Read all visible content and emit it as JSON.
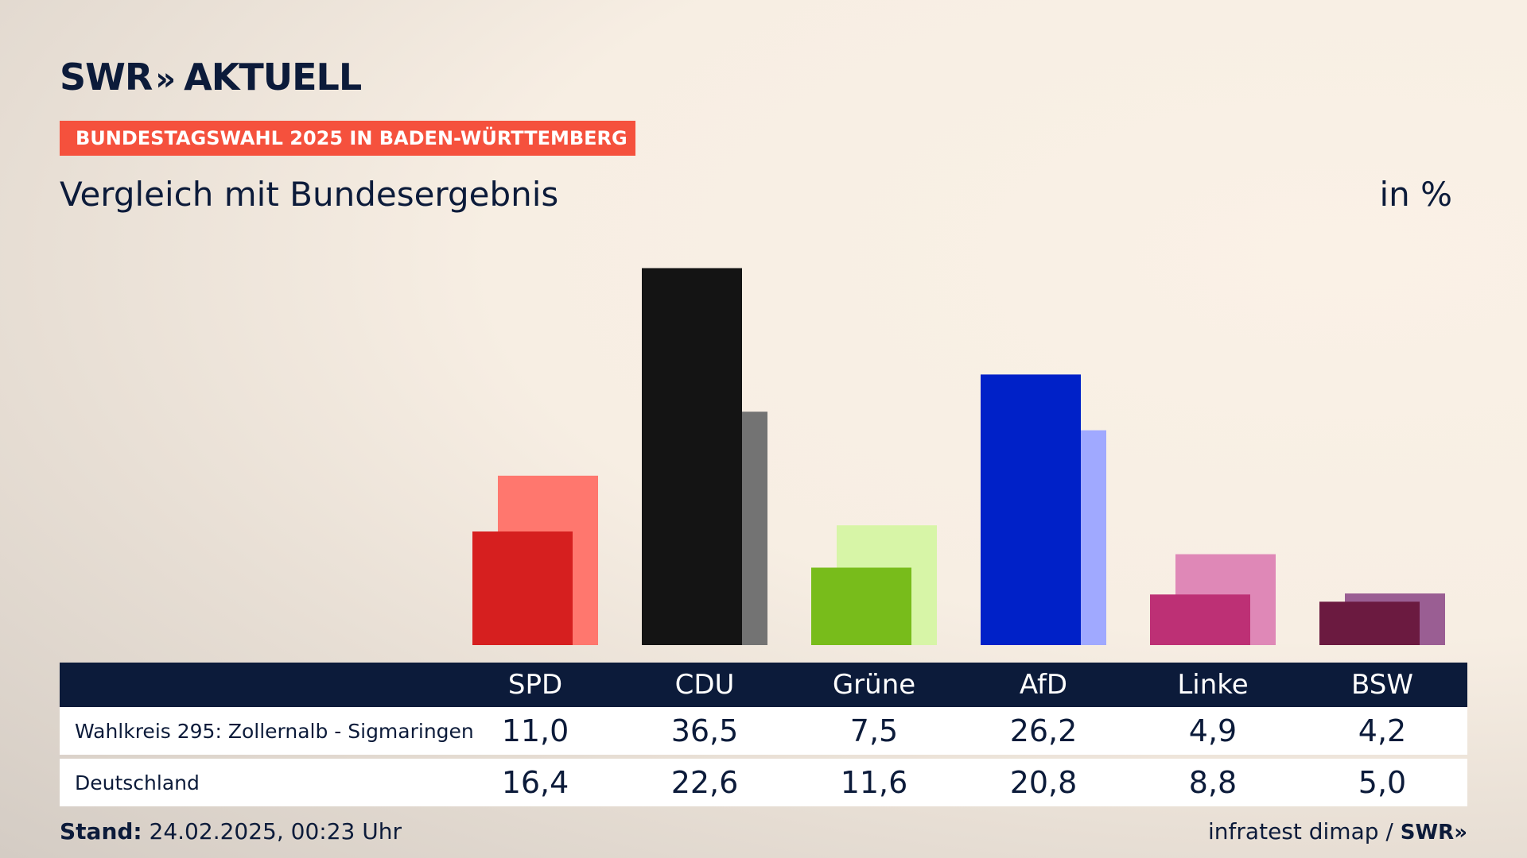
{
  "header": {
    "logo_text": "SWR",
    "logo_arrows": "»",
    "logo_suffix": "AKTUELL",
    "tag": "BUNDESTAGSWAHL 2025 IN BADEN-WÜRTTEMBERG",
    "title": "Vergleich mit Bundesergebnis",
    "unit": "in %"
  },
  "chart_data": {
    "type": "bar",
    "title": "Vergleich mit Bundesergebnis",
    "ylabel": "in %",
    "ylim": [
      0,
      40
    ],
    "categories": [
      "SPD",
      "CDU",
      "Grüne",
      "AfD",
      "Linke",
      "BSW"
    ],
    "series": [
      {
        "name": "Wahlkreis 295: Zollernalb - Sigmaringen",
        "values": [
          11.0,
          36.5,
          7.5,
          26.2,
          4.9,
          4.2
        ],
        "colors": [
          "#d61f1f",
          "#141414",
          "#78bc1b",
          "#0021c8",
          "#bd3075",
          "#6b1a40"
        ]
      },
      {
        "name": "Deutschland",
        "values": [
          16.4,
          22.6,
          11.6,
          20.8,
          8.8,
          5.0
        ],
        "colors": [
          "#ff776e",
          "#737373",
          "#d7f5a7",
          "#a0a9ff",
          "#df88b7",
          "#9a5e93"
        ]
      }
    ]
  },
  "table": {
    "headers": [
      "SPD",
      "CDU",
      "Grüne",
      "AfD",
      "Linke",
      "BSW"
    ],
    "rows": [
      {
        "label": "Wahlkreis 295: Zollernalb - Sigmaringen",
        "values": [
          "11,0",
          "36,5",
          "7,5",
          "26,2",
          "4,9",
          "4,2"
        ]
      },
      {
        "label": "Deutschland",
        "values": [
          "16,4",
          "22,6",
          "11,6",
          "20,8",
          "8,8",
          "5,0"
        ]
      }
    ]
  },
  "footer": {
    "stand_label": "Stand:",
    "stand_value": "24.02.2025, 00:23 Uhr",
    "source": "infratest dimap /",
    "brand": "SWR»"
  }
}
